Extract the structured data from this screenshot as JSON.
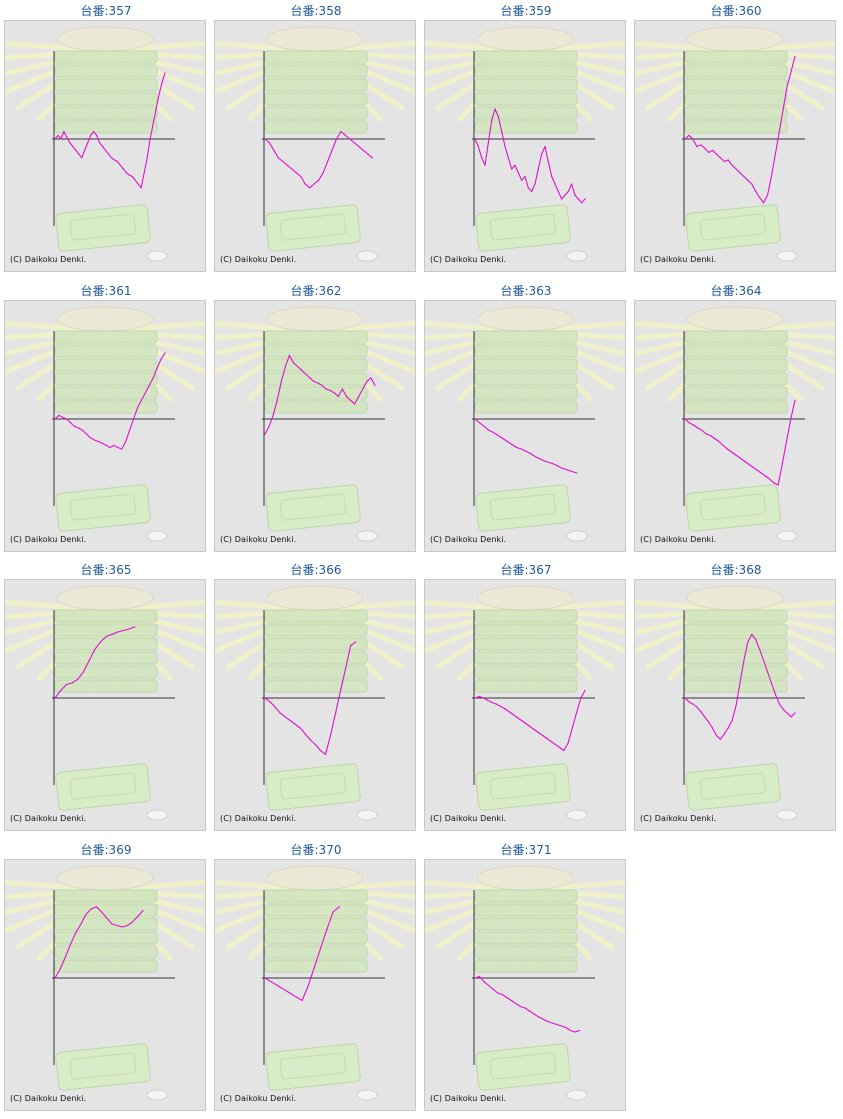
{
  "colors": {
    "line": "#e010d0",
    "axis": "#333333",
    "title": "#1f5a9a",
    "panel_bg": "#e4e4e4"
  },
  "copyright": "(C) Daikoku Denki.",
  "chart_data": [
    {
      "type": "line",
      "title": "台番:357",
      "values": [
        0,
        5,
        0,
        10,
        2,
        -5,
        -10,
        -15,
        -20,
        -25,
        -15,
        -5,
        5,
        10,
        5,
        -5,
        -10,
        -15,
        -20,
        -25,
        -28,
        -30,
        -35,
        -40,
        -45,
        -48,
        -50,
        -55,
        -60,
        -65,
        -45,
        -25,
        0,
        20,
        40,
        60,
        75,
        88
      ]
    },
    {
      "type": "line",
      "title": "台番:358",
      "values": [
        0,
        -5,
        -15,
        -25,
        -30,
        -35,
        -40,
        -45,
        -50,
        -60,
        -65,
        -60,
        -55,
        -45,
        -30,
        -15,
        0,
        10,
        5,
        0,
        -5,
        -10,
        -15,
        -20,
        -25
      ]
    },
    {
      "type": "line",
      "title": "台番:359",
      "values": [
        0,
        -10,
        -25,
        -35,
        -5,
        25,
        40,
        30,
        10,
        -10,
        -25,
        -40,
        -35,
        -45,
        -55,
        -50,
        -65,
        -70,
        -60,
        -40,
        -20,
        -10,
        -30,
        -50,
        -60,
        -70,
        -80,
        -75,
        -70,
        -60,
        -75,
        -80,
        -85,
        -80
      ]
    },
    {
      "type": "line",
      "title": "台番:360",
      "values": [
        0,
        5,
        0,
        -10,
        -8,
        -12,
        -18,
        -15,
        -20,
        -25,
        -30,
        -28,
        -35,
        -40,
        -45,
        -50,
        -55,
        -60,
        -70,
        -78,
        -85,
        -75,
        -50,
        -20,
        10,
        40,
        70,
        90,
        110
      ]
    },
    {
      "type": "line",
      "title": "台番:361",
      "values": [
        0,
        5,
        2,
        0,
        -5,
        -10,
        -12,
        -15,
        -20,
        -25,
        -28,
        -30,
        -32,
        -35,
        -38,
        -35,
        -38,
        -40,
        -30,
        -15,
        0,
        15,
        25,
        35,
        45,
        55,
        68,
        80,
        88
      ]
    },
    {
      "type": "line",
      "title": "台番:362",
      "values": [
        -20,
        -10,
        5,
        25,
        50,
        70,
        85,
        75,
        70,
        65,
        60,
        55,
        50,
        48,
        45,
        40,
        38,
        35,
        30,
        40,
        30,
        25,
        20,
        30,
        40,
        50,
        55,
        45
      ]
    },
    {
      "type": "line",
      "title": "台番:363",
      "values": [
        0,
        -5,
        -10,
        -15,
        -18,
        -22,
        -26,
        -30,
        -34,
        -38,
        -40,
        -43,
        -46,
        -50,
        -53,
        -56,
        -58,
        -60,
        -63,
        -66,
        -68,
        -70,
        -72
      ]
    },
    {
      "type": "line",
      "title": "台番:364",
      "values": [
        0,
        -5,
        -8,
        -12,
        -15,
        -20,
        -22,
        -26,
        -30,
        -35,
        -40,
        -44,
        -48,
        -52,
        -56,
        -60,
        -64,
        -68,
        -72,
        -76,
        -80,
        -85,
        -88,
        -60,
        -30,
        0,
        25
      ]
    },
    {
      "type": "line",
      "title": "台番:365",
      "values": [
        0,
        10,
        18,
        20,
        25,
        35,
        50,
        65,
        75,
        82,
        85,
        88,
        90,
        92,
        95
      ]
    },
    {
      "type": "line",
      "title": "台番:366",
      "values": [
        0,
        -5,
        -12,
        -20,
        -25,
        -30,
        -35,
        -40,
        -48,
        -56,
        -62,
        -70,
        -75,
        -50,
        -20,
        10,
        40,
        70,
        75
      ]
    },
    {
      "type": "line",
      "title": "台番:367",
      "values": [
        0,
        2,
        0,
        -3,
        -6,
        -8,
        -11,
        -14,
        -18,
        -22,
        -26,
        -30,
        -34,
        -38,
        -42,
        -46,
        -50,
        -54,
        -58,
        -62,
        -66,
        -70,
        -60,
        -40,
        -20,
        0,
        10
      ]
    },
    {
      "type": "line",
      "title": "台番:368",
      "values": [
        0,
        -5,
        -8,
        -12,
        -18,
        -25,
        -32,
        -40,
        -50,
        -55,
        -48,
        -40,
        -30,
        -10,
        20,
        50,
        75,
        85,
        78,
        65,
        50,
        35,
        20,
        5,
        -8,
        -15,
        -20,
        -25,
        -20
      ]
    },
    {
      "type": "line",
      "title": "台番:369",
      "values": [
        0,
        12,
        28,
        45,
        60,
        72,
        85,
        92,
        95,
        88,
        80,
        72,
        70,
        68,
        70,
        75,
        82,
        90
      ]
    },
    {
      "type": "line",
      "title": "台番:370",
      "values": [
        0,
        -5,
        -10,
        -15,
        -20,
        -25,
        -30,
        -10,
        15,
        40,
        65,
        88,
        95
      ]
    },
    {
      "type": "line",
      "title": "台番:371",
      "values": [
        0,
        2,
        -5,
        -10,
        -15,
        -20,
        -22,
        -26,
        -30,
        -34,
        -38,
        -40,
        -44,
        -48,
        -52,
        -55,
        -58,
        -60,
        -62,
        -64,
        -66,
        -70,
        -72,
        -70
      ]
    }
  ]
}
